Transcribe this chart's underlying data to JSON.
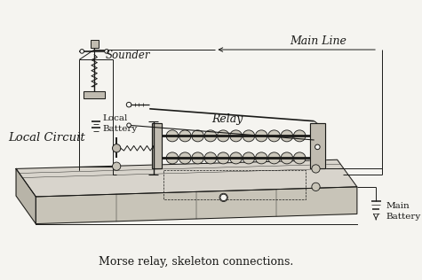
{
  "title": "Morse relay, skeleton connections.",
  "bg_color": "#f5f4f0",
  "line_color": "#1a1a18",
  "text_color": "#1a1a18",
  "labels": {
    "sounder": "Sounder",
    "local_battery": "Local\nBattery",
    "local_circuit": "Local Circuit",
    "relay": "Relay",
    "main_line": "Main Line",
    "main_battery": "Main\nBattery"
  },
  "fig_width": 4.75,
  "fig_height": 3.16,
  "dpi": 100
}
